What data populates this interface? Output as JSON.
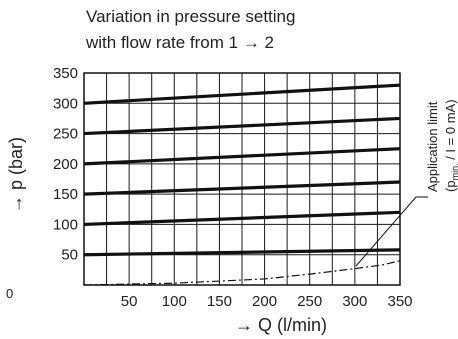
{
  "chart_data": {
    "type": "line",
    "title_lines": [
      "Variation in pressure setting",
      "with flow rate from 1 → 2"
    ],
    "xlabel": "→ Q (l/min)",
    "ylabel": "→ p (bar)",
    "xlim": [
      0,
      350
    ],
    "ylim": [
      0,
      350
    ],
    "x_ticks": [
      50,
      100,
      150,
      200,
      250,
      300,
      350
    ],
    "y_ticks": [
      50,
      100,
      150,
      200,
      250,
      300,
      350
    ],
    "origin_label": "0",
    "grid": true,
    "grid_x_step": 25,
    "series": [
      {
        "x": [
          0,
          350
        ],
        "y": [
          50,
          58
        ]
      },
      {
        "x": [
          0,
          350
        ],
        "y": [
          100,
          120
        ]
      },
      {
        "x": [
          0,
          350
        ],
        "y": [
          150,
          170
        ]
      },
      {
        "x": [
          0,
          350
        ],
        "y": [
          200,
          225
        ]
      },
      {
        "x": [
          0,
          350
        ],
        "y": [
          250,
          275
        ]
      },
      {
        "x": [
          0,
          350
        ],
        "y": [
          300,
          330
        ]
      }
    ],
    "application_limit": {
      "x": [
        0,
        100,
        200,
        250,
        300,
        330,
        350
      ],
      "y": [
        0,
        3,
        10,
        18,
        27,
        33,
        40
      ],
      "style": "dash-dot",
      "label_line1": "Application limit",
      "label_line2_main": "p",
      "label_line2_sub": "min.",
      "label_line2_rest": " / I = 0 mA",
      "label_open": "(",
      "label_close": ")"
    },
    "colors": {
      "line": "#111111",
      "grid": "#1a1a1a",
      "text": "#222222"
    }
  }
}
